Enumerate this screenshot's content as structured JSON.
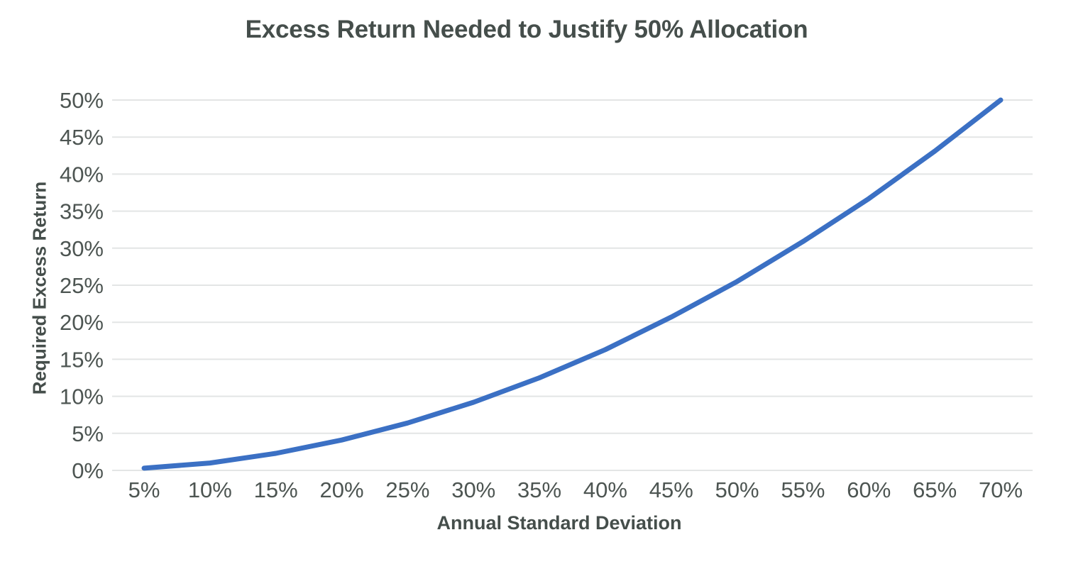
{
  "style": {
    "background": "#ffffff",
    "line_color": "#3b70c4",
    "gridline_color": "#e3e5e5",
    "title_color": "#454e4b",
    "tick_color": "#4d5552"
  },
  "chart_data": {
    "type": "line",
    "title": "Excess Return Needed to Justify 50% Allocation",
    "xlabel": "Annual Standard Deviation",
    "ylabel": "Required Excess Return",
    "x": [
      5,
      10,
      15,
      20,
      25,
      30,
      35,
      40,
      45,
      50,
      55,
      60,
      65,
      70
    ],
    "x_tick_labels": [
      "5%",
      "10%",
      "15%",
      "20%",
      "25%",
      "30%",
      "35%",
      "40%",
      "45%",
      "50%",
      "55%",
      "60%",
      "65%",
      "70%"
    ],
    "y_tick_values": [
      0,
      5,
      10,
      15,
      20,
      25,
      30,
      35,
      40,
      45,
      50
    ],
    "y_tick_labels": [
      "0%",
      "5%",
      "10%",
      "15%",
      "20%",
      "25%",
      "30%",
      "35%",
      "40%",
      "45%",
      "50%"
    ],
    "series": [
      {
        "name": "Required Excess Return",
        "color": "#3b70c4",
        "values": [
          0.3,
          1.0,
          2.3,
          4.1,
          6.4,
          9.2,
          12.5,
          16.3,
          20.7,
          25.5,
          30.9,
          36.7,
          43.1,
          50.0
        ]
      }
    ],
    "xlim": [
      5,
      70
    ],
    "ylim": [
      0,
      50
    ],
    "grid": "horizontal",
    "legend": "none"
  }
}
